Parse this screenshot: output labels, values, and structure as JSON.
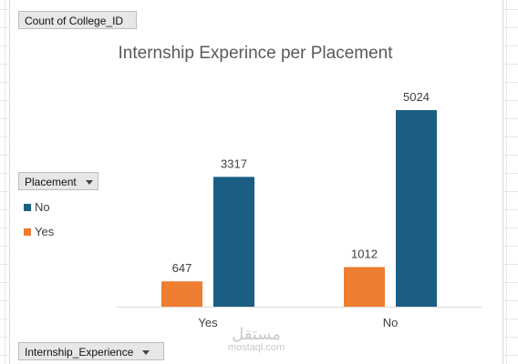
{
  "pivot": {
    "value_field": "Count  of College_ID",
    "legend_field": "Placement",
    "axis_field": "Internship_Experience"
  },
  "watermark": {
    "text": "مستقل",
    "sub": "mostaql.com"
  },
  "chart_data": {
    "type": "bar",
    "title": "Internship Experince per Placement",
    "xlabel": "",
    "ylabel": "",
    "categories": [
      "Yes",
      "No"
    ],
    "series": [
      {
        "name": "Yes",
        "color": "#ed7d31",
        "values": [
          647,
          1012
        ]
      },
      {
        "name": "No",
        "color": "#1b5e84",
        "values": [
          3317,
          5024
        ]
      }
    ],
    "ylim": [
      0,
      6000
    ],
    "legend_position": "left",
    "grid": false,
    "data_labels": true
  }
}
